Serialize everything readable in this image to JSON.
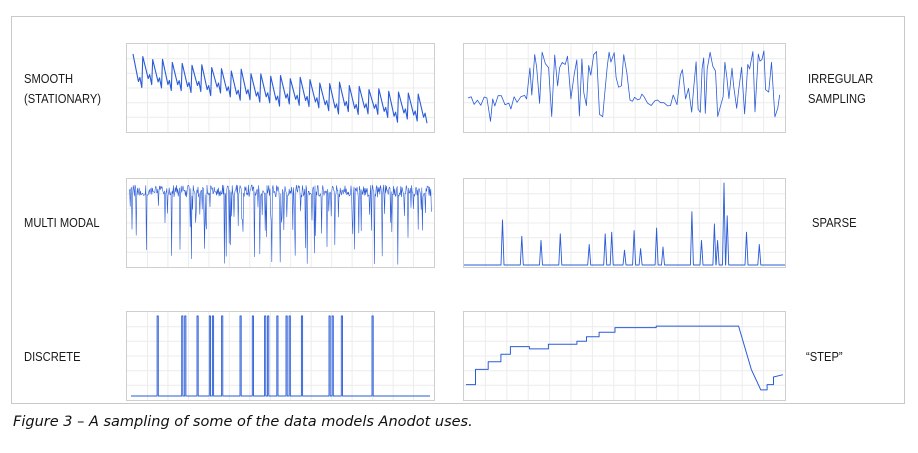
{
  "caption": "Figure 3 – A sampling of some of the data models Anodot uses.",
  "colors": {
    "line": "#2a5bd7",
    "grid": "#ececec",
    "border": "#cfcfcf"
  },
  "chart_data": [
    {
      "type": "line",
      "id": "smooth",
      "label_lines": [
        "SMOOTH",
        "(STATIONARY)"
      ],
      "pattern": "sawtooth with ~30 cycles drifting slowly downward"
    },
    {
      "type": "line",
      "id": "irregular",
      "label_lines": [
        "IRREGULAR",
        "SAMPLING"
      ],
      "pattern": "low noisy baseline alternating with bursts of tall spikes"
    },
    {
      "type": "line",
      "id": "multimodal",
      "label_lines": [
        "MULTI MODAL"
      ],
      "pattern": "dense high-frequency band near the top with frequent deep downward drops"
    },
    {
      "type": "line",
      "id": "sparse",
      "label_lines": [
        "SPARSE"
      ],
      "pattern": "flat zero baseline with isolated narrow spikes",
      "spikes": [
        {
          "x": 0.12,
          "h": 0.55
        },
        {
          "x": 0.18,
          "h": 0.35
        },
        {
          "x": 0.24,
          "h": 0.3
        },
        {
          "x": 0.3,
          "h": 0.38
        },
        {
          "x": 0.39,
          "h": 0.25
        },
        {
          "x": 0.44,
          "h": 0.38
        },
        {
          "x": 0.46,
          "h": 0.4
        },
        {
          "x": 0.5,
          "h": 0.18
        },
        {
          "x": 0.53,
          "h": 0.42
        },
        {
          "x": 0.55,
          "h": 0.2
        },
        {
          "x": 0.6,
          "h": 0.45
        },
        {
          "x": 0.62,
          "h": 0.22
        },
        {
          "x": 0.71,
          "h": 0.65
        },
        {
          "x": 0.74,
          "h": 0.3
        },
        {
          "x": 0.78,
          "h": 0.5
        },
        {
          "x": 0.79,
          "h": 0.3
        },
        {
          "x": 0.81,
          "h": 1.0
        },
        {
          "x": 0.82,
          "h": 0.6
        },
        {
          "x": 0.88,
          "h": 0.4
        },
        {
          "x": 0.92,
          "h": 0.25
        }
      ]
    },
    {
      "type": "line",
      "id": "discrete",
      "label_lines": [
        "DISCRETE"
      ],
      "pattern": "flat low baseline with full-height vertical jumps",
      "spikes": [
        0.1,
        0.18,
        0.19,
        0.23,
        0.27,
        0.28,
        0.31,
        0.37,
        0.41,
        0.45,
        0.46,
        0.49,
        0.52,
        0.53,
        0.57,
        0.66,
        0.67,
        0.7,
        0.8
      ]
    },
    {
      "type": "line",
      "id": "step",
      "label_lines": [
        "“STEP”"
      ],
      "pattern": "staircase rising to a plateau, sharp drop, then small steps up",
      "points": [
        [
          0,
          0.15
        ],
        [
          0.03,
          0.15
        ],
        [
          0.03,
          0.35
        ],
        [
          0.07,
          0.35
        ],
        [
          0.07,
          0.45
        ],
        [
          0.11,
          0.45
        ],
        [
          0.11,
          0.55
        ],
        [
          0.14,
          0.55
        ],
        [
          0.14,
          0.65
        ],
        [
          0.2,
          0.65
        ],
        [
          0.2,
          0.62
        ],
        [
          0.26,
          0.62
        ],
        [
          0.26,
          0.68
        ],
        [
          0.35,
          0.68
        ],
        [
          0.35,
          0.72
        ],
        [
          0.38,
          0.72
        ],
        [
          0.38,
          0.78
        ],
        [
          0.42,
          0.78
        ],
        [
          0.42,
          0.84
        ],
        [
          0.47,
          0.84
        ],
        [
          0.47,
          0.9
        ],
        [
          0.6,
          0.9
        ],
        [
          0.6,
          0.92
        ],
        [
          0.86,
          0.92
        ],
        [
          0.9,
          0.35
        ],
        [
          0.93,
          0.08
        ],
        [
          0.95,
          0.08
        ],
        [
          0.95,
          0.15
        ],
        [
          0.97,
          0.15
        ],
        [
          0.97,
          0.25
        ],
        [
          1.0,
          0.28
        ]
      ]
    }
  ]
}
